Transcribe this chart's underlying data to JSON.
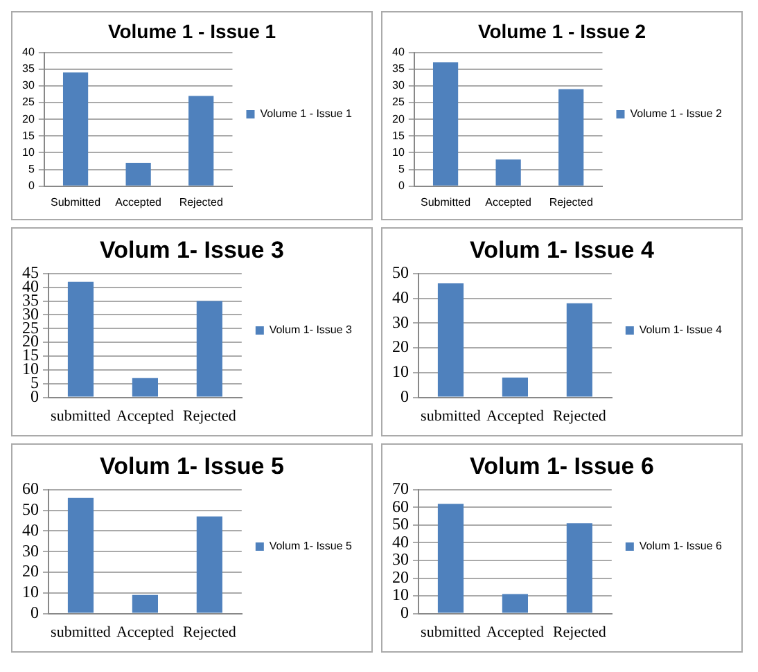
{
  "chart_data": [
    {
      "type": "bar",
      "title": "Volume 1 - Issue 1",
      "categories": [
        "Submitted",
        "Accepted",
        "Rejected"
      ],
      "series": [
        {
          "name": "Volume 1 - Issue 1",
          "color": "#4f81bd",
          "values": [
            34,
            7,
            27
          ]
        }
      ],
      "ylim": [
        0,
        40
      ],
      "yticks": [
        0,
        5,
        10,
        15,
        20,
        25,
        30,
        35,
        40
      ],
      "grid": "y",
      "legend": "right"
    },
    {
      "type": "bar",
      "title": "Volume 1 - Issue 2",
      "categories": [
        "Submitted",
        "Accepted",
        "Rejected"
      ],
      "series": [
        {
          "name": "Volume 1 - Issue 2",
          "color": "#4f81bd",
          "values": [
            37,
            8,
            29
          ]
        }
      ],
      "ylim": [
        0,
        40
      ],
      "yticks": [
        0,
        5,
        10,
        15,
        20,
        25,
        30,
        35,
        40
      ],
      "grid": "y",
      "legend": "right"
    },
    {
      "type": "bar",
      "title": "Volum 1- Issue 3",
      "categories": [
        "submitted",
        "Accepted",
        "Rejected"
      ],
      "series": [
        {
          "name": "Volum 1- Issue 3",
          "color": "#4f81bd",
          "values": [
            42,
            7,
            35
          ]
        }
      ],
      "ylim": [
        0,
        45
      ],
      "yticks": [
        0,
        5,
        10,
        15,
        20,
        25,
        30,
        35,
        40,
        45
      ],
      "grid": "y",
      "legend": "right"
    },
    {
      "type": "bar",
      "title": "Volum 1- Issue 4",
      "categories": [
        "submitted",
        "Accepted",
        "Rejected"
      ],
      "series": [
        {
          "name": "Volum 1- Issue 4",
          "color": "#4f81bd",
          "values": [
            46,
            8,
            38
          ]
        }
      ],
      "ylim": [
        0,
        50
      ],
      "yticks": [
        0,
        10,
        20,
        30,
        40,
        50
      ],
      "grid": "y",
      "legend": "right"
    },
    {
      "type": "bar",
      "title": "Volum 1- Issue 5",
      "categories": [
        "submitted",
        "Accepted",
        "Rejected"
      ],
      "series": [
        {
          "name": "Volum 1- Issue 5",
          "color": "#4f81bd",
          "values": [
            56,
            9,
            47
          ]
        }
      ],
      "ylim": [
        0,
        60
      ],
      "yticks": [
        0,
        10,
        20,
        30,
        40,
        50,
        60
      ],
      "grid": "y",
      "legend": "right"
    },
    {
      "type": "bar",
      "title": "Volum 1- Issue 6",
      "categories": [
        "submitted",
        "Accepted",
        "Rejected"
      ],
      "series": [
        {
          "name": "Volum 1- Issue 6",
          "color": "#4f81bd",
          "values": [
            62,
            11,
            51
          ]
        }
      ],
      "ylim": [
        0,
        70
      ],
      "yticks": [
        0,
        10,
        20,
        30,
        40,
        50,
        60,
        70
      ],
      "grid": "y",
      "legend": "right"
    }
  ]
}
